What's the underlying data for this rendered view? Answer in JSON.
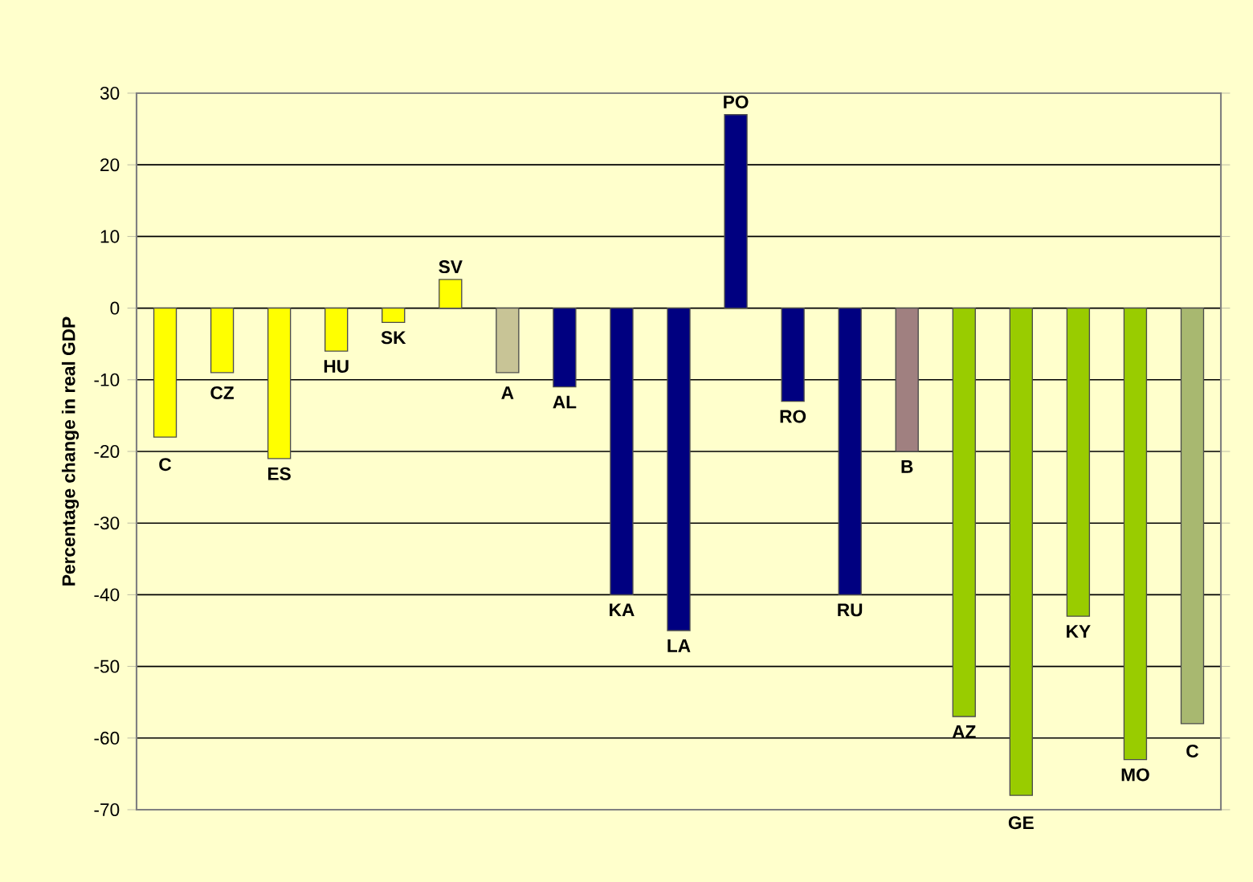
{
  "chart_data": {
    "type": "bar",
    "ylabel": "Percentage change in real GDP",
    "categories": [
      "C",
      "CZ",
      "ES",
      "HU",
      "SK",
      "SV",
      "A",
      "AL",
      "KA",
      "LA",
      "PO",
      "RO",
      "RU",
      "B",
      "AZ",
      "GE",
      "KY",
      "MO",
      "C"
    ],
    "values": [
      -18,
      -9,
      -21,
      -6,
      -2,
      4,
      -9,
      -11,
      -40,
      -45,
      27,
      -13,
      -40,
      -20,
      -57,
      -68,
      -43,
      -63,
      -58
    ],
    "colors": [
      "#ffff00",
      "#ffff00",
      "#ffff00",
      "#ffff00",
      "#ffff00",
      "#ffff00",
      "#c8c496",
      "#000080",
      "#000080",
      "#000080",
      "#000080",
      "#000080",
      "#000080",
      "#a08080",
      "#99cc00",
      "#99cc00",
      "#99cc00",
      "#99cc00",
      "#a8b870"
    ],
    "ylim": [
      -70,
      30
    ],
    "yticks": [
      -70,
      -60,
      -50,
      -40,
      -30,
      -20,
      -10,
      0,
      10,
      20,
      30
    ],
    "grid": "y"
  }
}
